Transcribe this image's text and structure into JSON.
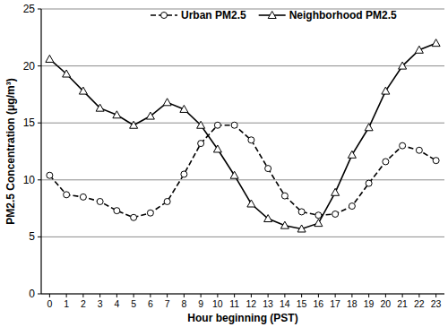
{
  "chart_data": {
    "type": "line",
    "x_label": "Hour beginning (PST)",
    "y_label": "PM2.5 Concentration (μg/m³)",
    "x": [
      0,
      1,
      2,
      3,
      4,
      5,
      6,
      7,
      8,
      9,
      10,
      11,
      12,
      13,
      14,
      15,
      16,
      17,
      18,
      19,
      20,
      21,
      22,
      23
    ],
    "xlim": [
      -0.5,
      23.5
    ],
    "xticks": [
      0,
      1,
      2,
      3,
      4,
      5,
      6,
      7,
      8,
      9,
      10,
      11,
      12,
      13,
      14,
      15,
      16,
      17,
      18,
      19,
      20,
      21,
      22,
      23
    ],
    "ylim": [
      0,
      25
    ],
    "yticks": [
      0,
      5,
      10,
      15,
      20,
      25
    ],
    "grid": true,
    "legend": "top",
    "series": [
      {
        "name": "Urban PM2.5",
        "color": "#000000",
        "marker": "circle",
        "line_style": "dashed",
        "values": [
          10.4,
          8.7,
          8.5,
          8.1,
          7.3,
          6.7,
          7.1,
          8.1,
          10.5,
          13.2,
          14.8,
          14.8,
          13.5,
          11.0,
          8.6,
          7.2,
          6.9,
          7.0,
          7.7,
          9.7,
          11.6,
          13.0,
          12.6,
          11.7
        ]
      },
      {
        "name": "Neighborhood PM2.5",
        "color": "#000000",
        "marker": "triangle",
        "line_style": "solid",
        "values": [
          20.6,
          19.3,
          17.8,
          16.3,
          15.7,
          14.8,
          15.6,
          16.8,
          16.2,
          14.8,
          12.7,
          10.4,
          7.9,
          6.6,
          6.0,
          5.7,
          6.2,
          8.9,
          12.2,
          14.6,
          17.8,
          20.0,
          21.4,
          22.0
        ]
      }
    ]
  }
}
